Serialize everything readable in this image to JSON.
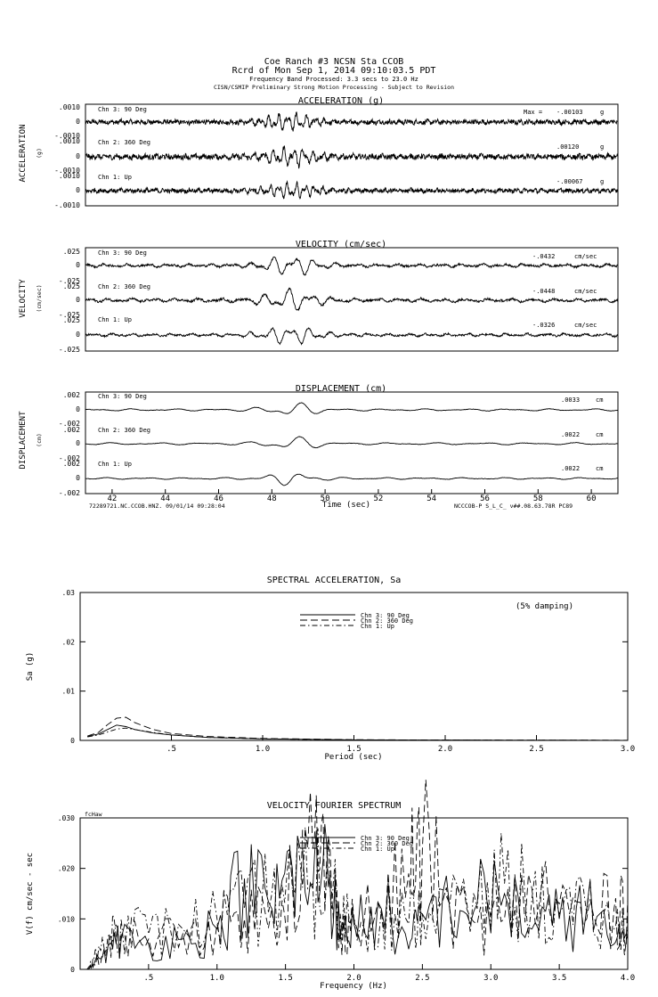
{
  "header": {
    "line1": "Coe Ranch #3     NCSN Sta CCOB",
    "line2": "Rcrd of Mon Sep  1, 2014 09:10:03.5 PDT",
    "line3": "Frequency Band Processed: 3.3 secs to 23.0 Hz",
    "line4": "CISN/CSMIP Preliminary Strong Motion Processing - Subject to Revision"
  },
  "footer": {
    "left": "72289721.NC.CCOB.HNZ. 09/01/14 09:28:04",
    "right": "NCCCOB-P  S_L_C_  v##.08.63.78R PC89",
    "xlabel": "Time (sec)"
  },
  "chart_data": [
    {
      "type": "line",
      "panel": "acceleration",
      "title": "ACCELERATION (g)",
      "ylabel": "ACCELERATION",
      "yunit": "(g)",
      "x_range": [
        41.0,
        61.0
      ],
      "channels": [
        {
          "name": "Chn 3: 90 Deg",
          "max_prefix": "Max =",
          "max": "-.00103",
          "unit": "g",
          "ticks": [
            ".0010",
            "0",
            "-.0010"
          ]
        },
        {
          "name": "Chn 2: 360 Deg",
          "max_prefix": "",
          "max": ".00120",
          "unit": "g",
          "ticks": [
            ".0010",
            "0",
            "-.0010"
          ]
        },
        {
          "name": "Chn 1: Up",
          "max_prefix": "",
          "max": "-.00067",
          "unit": "g",
          "ticks": [
            ".0010",
            "0",
            "-.0010"
          ]
        }
      ]
    },
    {
      "type": "line",
      "panel": "velocity",
      "title": "VELOCITY (cm/sec)",
      "ylabel": "VELOCITY",
      "yunit": "(cm/sec)",
      "x_range": [
        41.0,
        61.0
      ],
      "channels": [
        {
          "name": "Chn 3: 90 Deg",
          "max": "-.0432",
          "unit": "cm/sec",
          "ticks": [
            ".025",
            "0",
            "-.025"
          ]
        },
        {
          "name": "Chn 2: 360 Deg",
          "max": "-.0448",
          "unit": "cm/sec",
          "ticks": [
            ".025",
            "0",
            "-.025"
          ]
        },
        {
          "name": "Chn 1: Up",
          "max": "-.0326",
          "unit": "cm/sec",
          "ticks": [
            ".025",
            "0",
            "-.025"
          ]
        }
      ]
    },
    {
      "type": "line",
      "panel": "displacement",
      "title": "DISPLACEMENT (cm)",
      "ylabel": "DISPLACEMENT",
      "yunit": "(cm)",
      "x_range": [
        41.0,
        61.0
      ],
      "xticks": [
        "42",
        "44",
        "46",
        "48",
        "50",
        "52",
        "54",
        "56",
        "58",
        "60"
      ],
      "channels": [
        {
          "name": "Chn 3: 90 Deg",
          "max": ".0033",
          "unit": "cm",
          "ticks": [
            ".002",
            "0",
            "-.002"
          ]
        },
        {
          "name": "Chn 2: 360 Deg",
          "max": ".0022",
          "unit": "cm",
          "ticks": [
            ".002",
            "0",
            "-.002"
          ]
        },
        {
          "name": "Chn 1: Up",
          "max": ".0022",
          "unit": "cm",
          "ticks": [
            ".002",
            "0",
            "-.002"
          ]
        }
      ]
    },
    {
      "type": "line",
      "panel": "spectral",
      "title": "SPECTRAL ACCELERATION, Sa",
      "ylabel": "Sa (g)",
      "xlabel": "Period (sec)",
      "note": "(5% damping)",
      "xlim": [
        0,
        3.0
      ],
      "ylim": [
        0,
        0.03
      ],
      "xticks": [
        ".5",
        "1.0",
        "1.5",
        "2.0",
        "2.5",
        "3.0"
      ],
      "yticks": [
        "0",
        ".01",
        ".02",
        ".03"
      ],
      "series": [
        {
          "name": "Chn 3: 90 Deg",
          "style": "solid",
          "x": [
            0.04,
            0.1,
            0.15,
            0.2,
            0.25,
            0.3,
            0.4,
            0.5,
            0.7,
            1.0,
            1.5,
            2.0,
            2.5,
            3.0
          ],
          "y": [
            0.0008,
            0.0013,
            0.0022,
            0.0031,
            0.0028,
            0.0022,
            0.0015,
            0.0011,
            0.0006,
            0.0003,
            0.0001,
            5e-05,
            3e-05,
            2e-05
          ]
        },
        {
          "name": "Chn 2: 360 Deg",
          "style": "dashed",
          "x": [
            0.04,
            0.1,
            0.15,
            0.2,
            0.25,
            0.3,
            0.4,
            0.5,
            0.7,
            1.0,
            1.5,
            2.0,
            2.5,
            3.0
          ],
          "y": [
            0.0009,
            0.0016,
            0.0032,
            0.0045,
            0.0047,
            0.0036,
            0.0022,
            0.0014,
            0.0008,
            0.0004,
            0.00015,
            8e-05,
            5e-05,
            3e-05
          ]
        },
        {
          "name": "Chn 1: Up",
          "style": "dashdot",
          "x": [
            0.04,
            0.1,
            0.15,
            0.2,
            0.25,
            0.3,
            0.4,
            0.5,
            0.7,
            1.0,
            1.5,
            2.0,
            2.5,
            3.0
          ],
          "y": [
            0.0007,
            0.0011,
            0.0017,
            0.0023,
            0.0025,
            0.0022,
            0.0016,
            0.0011,
            0.0006,
            0.0003,
            0.0001,
            5e-05,
            3e-05,
            2e-05
          ]
        }
      ]
    },
    {
      "type": "line",
      "panel": "fourier",
      "title": "VELOCITY FOURIER SPECTRUM",
      "ylabel": "V(f)  cm/sec - sec",
      "xlabel": "Frequency (Hz)",
      "corner_note": "fcHaw",
      "xlim": [
        0,
        4.0
      ],
      "ylim": [
        0,
        0.03
      ],
      "xticks": [
        ".5",
        "1.0",
        "1.5",
        "2.0",
        "2.5",
        "3.0",
        "3.5",
        "4.0"
      ],
      "yticks": [
        "0",
        ".010",
        ".020",
        ".030"
      ],
      "series": [
        {
          "name": "Chn 3: 90 Deg",
          "style": "solid",
          "x": [
            0.05,
            0.1,
            0.2,
            0.3,
            0.5,
            0.75,
            1.0,
            1.2,
            1.4,
            1.55,
            1.7,
            1.8,
            1.9,
            2.0,
            2.2,
            2.4,
            2.5,
            2.7,
            2.9,
            3.1,
            3.3,
            3.5,
            3.7,
            3.9,
            4.0
          ],
          "y": [
            0.0,
            0.001,
            0.004,
            0.006,
            0.005,
            0.006,
            0.008,
            0.018,
            0.012,
            0.02,
            0.016,
            0.025,
            0.006,
            0.009,
            0.012,
            0.004,
            0.011,
            0.012,
            0.013,
            0.015,
            0.008,
            0.01,
            0.012,
            0.005,
            0.006
          ]
        },
        {
          "name": "Chn 2: 360 Deg",
          "style": "dashed",
          "x": [
            0.05,
            0.1,
            0.2,
            0.3,
            0.5,
            0.75,
            1.0,
            1.2,
            1.4,
            1.55,
            1.7,
            1.8,
            1.9,
            2.0,
            2.2,
            2.4,
            2.5,
            2.7,
            2.9,
            3.1,
            3.3,
            3.5,
            3.7,
            3.9,
            4.0
          ],
          "y": [
            0.0,
            0.001,
            0.004,
            0.007,
            0.006,
            0.007,
            0.009,
            0.01,
            0.012,
            0.017,
            0.024,
            0.021,
            0.008,
            0.01,
            0.011,
            0.019,
            0.024,
            0.012,
            0.009,
            0.01,
            0.016,
            0.013,
            0.01,
            0.012,
            0.014
          ]
        },
        {
          "name": "Chn 1: Up",
          "style": "dashdot",
          "x": [
            0.05,
            0.1,
            0.2,
            0.3,
            0.5,
            0.75,
            1.0,
            1.2,
            1.4,
            1.55,
            1.7,
            1.8,
            1.9,
            2.0,
            2.2,
            2.4,
            2.5,
            2.7,
            2.9,
            3.1,
            3.3,
            3.5,
            3.7,
            3.9,
            4.0
          ],
          "y": [
            0.0,
            0.002,
            0.006,
            0.01,
            0.007,
            0.008,
            0.01,
            0.012,
            0.015,
            0.016,
            0.017,
            0.018,
            0.011,
            0.01,
            0.012,
            0.009,
            0.011,
            0.013,
            0.012,
            0.017,
            0.014,
            0.011,
            0.011,
            0.008,
            0.009
          ]
        }
      ]
    }
  ]
}
